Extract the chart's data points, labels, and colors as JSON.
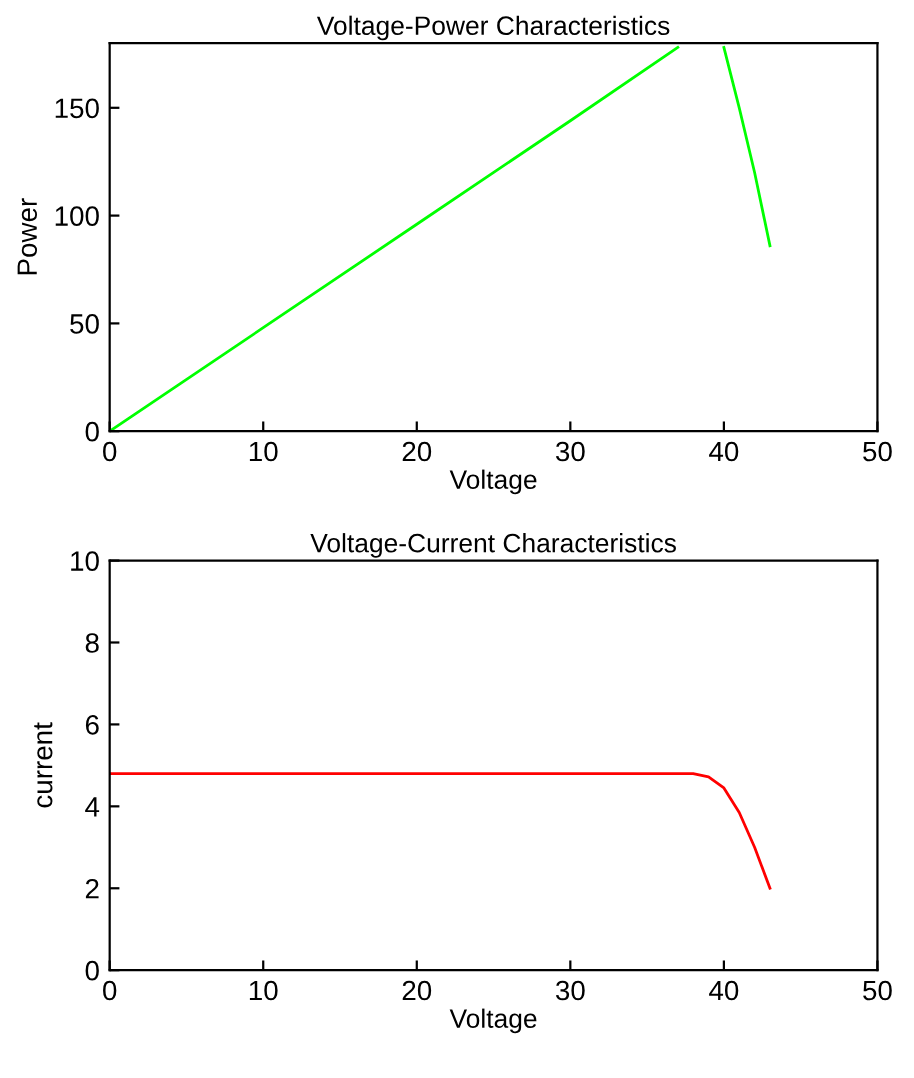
{
  "chart_data": [
    {
      "type": "line",
      "title": "Voltage-Power Characteristics",
      "xlabel": "Voltage",
      "ylabel": "Power",
      "xlim": [
        0,
        50
      ],
      "ylim": [
        0,
        180
      ],
      "xticks": [
        0,
        10,
        20,
        30,
        40,
        50
      ],
      "yticks": [
        0,
        50,
        100,
        150
      ],
      "grid": false,
      "legend": false,
      "line_style": "solid",
      "marker": "none",
      "series": [
        {
          "color": "#00ff00",
          "x": [
            0,
            10,
            20,
            30,
            37,
            null,
            40,
            41,
            42,
            43
          ],
          "values": [
            0,
            48,
            96,
            144,
            178,
            null,
            178,
            150,
            120,
            86
          ]
        }
      ]
    },
    {
      "type": "line",
      "title": "Voltage-Current Characteristics",
      "xlabel": "Voltage",
      "ylabel": "current",
      "xlim": [
        0,
        50
      ],
      "ylim": [
        0,
        10
      ],
      "xticks": [
        0,
        10,
        20,
        30,
        40,
        50
      ],
      "yticks": [
        0,
        2,
        4,
        6,
        8,
        10
      ],
      "grid": false,
      "legend": false,
      "line_style": "solid",
      "marker": "none",
      "series": [
        {
          "color": "#ff0000",
          "x": [
            0,
            10,
            20,
            30,
            38,
            39,
            40,
            41,
            42,
            43
          ],
          "values": [
            4.8,
            4.8,
            4.8,
            4.8,
            4.8,
            4.72,
            4.45,
            3.85,
            3.0,
            2.0
          ]
        }
      ]
    }
  ]
}
